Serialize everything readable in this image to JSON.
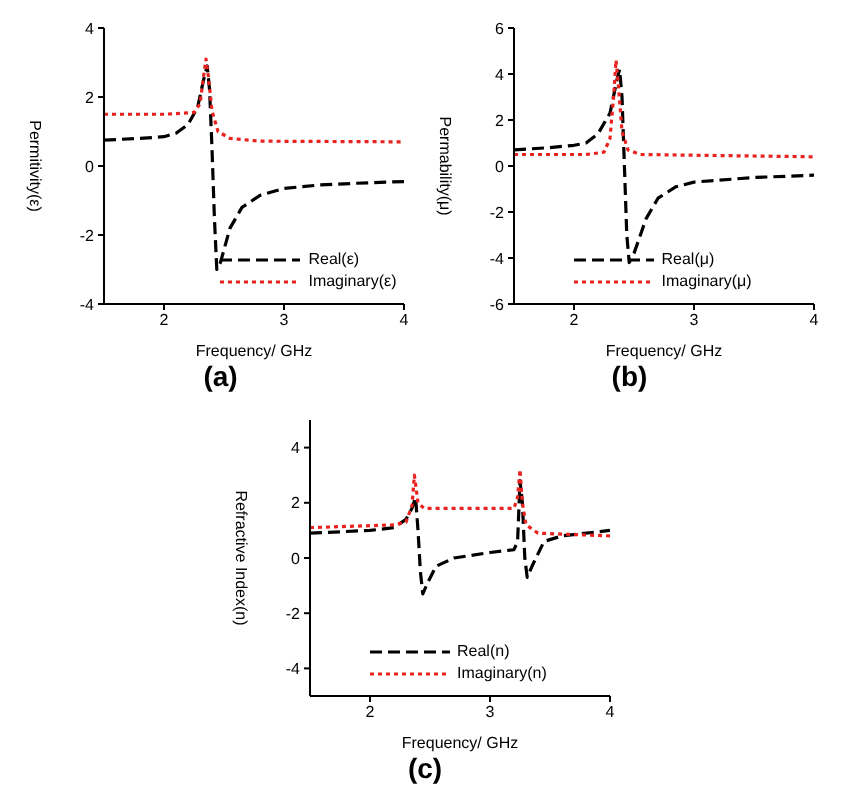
{
  "chart_data": [
    {
      "type": "line",
      "title": "(a)",
      "xlabel": "Frequency/ GHz",
      "ylabel": "Permitivity(ε)",
      "xlim": [
        1.5,
        4
      ],
      "xticks": [
        2,
        3,
        4
      ],
      "ylim": [
        -4,
        4
      ],
      "yticks": [
        -4,
        -2,
        0,
        2,
        4
      ],
      "legend": "bottom right",
      "series": [
        {
          "name": "Real(ε)",
          "color": "#000000",
          "line_style": "dashed",
          "x": [
            1.5,
            1.8,
            2.0,
            2.1,
            2.2,
            2.28,
            2.33,
            2.36,
            2.38,
            2.4,
            2.42,
            2.44,
            2.47,
            2.55,
            2.65,
            2.8,
            3.0,
            3.3,
            3.6,
            4.0
          ],
          "values": [
            0.75,
            0.8,
            0.85,
            0.95,
            1.2,
            1.7,
            2.5,
            2.9,
            2.2,
            0.5,
            -1.5,
            -3.0,
            -2.8,
            -1.8,
            -1.2,
            -0.85,
            -0.65,
            -0.55,
            -0.5,
            -0.45
          ]
        },
        {
          "name": "Imaginary(ε)",
          "color": "#e8221e",
          "line_style": "dotted",
          "x": [
            1.5,
            2.0,
            2.25,
            2.3,
            2.33,
            2.35,
            2.37,
            2.4,
            2.45,
            2.55,
            2.8,
            4.0
          ],
          "values": [
            1.5,
            1.5,
            1.55,
            1.8,
            2.6,
            3.1,
            2.6,
            1.6,
            1.0,
            0.8,
            0.72,
            0.7
          ]
        }
      ]
    },
    {
      "type": "line",
      "title": "(b)",
      "xlabel": "Frequency/ GHz",
      "ylabel": "Permability(μ)",
      "xlim": [
        1.5,
        4
      ],
      "xticks": [
        2,
        3,
        4
      ],
      "ylim": [
        -6,
        6
      ],
      "yticks": [
        -6,
        -4,
        -2,
        0,
        2,
        4,
        6
      ],
      "legend": "bottom",
      "series": [
        {
          "name": "Real(μ)",
          "color": "#000000",
          "line_style": "dashed",
          "x": [
            1.5,
            1.8,
            2.0,
            2.1,
            2.2,
            2.3,
            2.36,
            2.38,
            2.4,
            2.42,
            2.44,
            2.46,
            2.5,
            2.6,
            2.7,
            2.85,
            3.0,
            3.5,
            4.0
          ],
          "values": [
            0.7,
            0.8,
            0.9,
            1.0,
            1.4,
            2.3,
            3.8,
            4.2,
            3.0,
            0,
            -3,
            -4.2,
            -3.8,
            -2.3,
            -1.4,
            -0.9,
            -0.7,
            -0.5,
            -0.4
          ]
        },
        {
          "name": "Imaginary(μ)",
          "color": "#e8221e",
          "line_style": "dotted",
          "x": [
            1.5,
            2.1,
            2.25,
            2.3,
            2.33,
            2.35,
            2.37,
            2.4,
            2.45,
            2.55,
            4.0
          ],
          "values": [
            0.5,
            0.5,
            0.6,
            1.2,
            3.0,
            4.6,
            3.5,
            1.5,
            0.7,
            0.5,
            0.4
          ]
        }
      ]
    },
    {
      "type": "line",
      "title": "(c)",
      "xlabel": "Frequency/ GHz",
      "ylabel": "Refractive Index(n)",
      "xlim": [
        1.5,
        4
      ],
      "xticks": [
        2,
        3,
        4
      ],
      "ylim": [
        -5,
        5
      ],
      "yticks": [
        -4,
        -2,
        0,
        2,
        4
      ],
      "legend": "bottom",
      "series": [
        {
          "name": "Real(n)",
          "color": "#000000",
          "line_style": "dashed",
          "x": [
            1.5,
            2.0,
            2.2,
            2.3,
            2.35,
            2.38,
            2.4,
            2.42,
            2.44,
            2.48,
            2.55,
            2.7,
            3.0,
            3.2,
            3.23,
            3.25,
            3.27,
            3.29,
            3.31,
            3.35,
            3.45,
            3.6,
            4.0
          ],
          "values": [
            0.9,
            1.0,
            1.1,
            1.4,
            1.8,
            2.2,
            1.0,
            -0.5,
            -1.3,
            -0.9,
            -0.3,
            0.0,
            0.2,
            0.3,
            0.6,
            2.8,
            2.0,
            0,
            -0.7,
            -0.3,
            0.6,
            0.8,
            1.0
          ]
        },
        {
          "name": "Imaginary(n)",
          "color": "#e8221e",
          "line_style": "dotted",
          "x": [
            1.5,
            2.2,
            2.3,
            2.35,
            2.37,
            2.4,
            2.45,
            3.0,
            3.2,
            3.23,
            3.25,
            3.27,
            3.3,
            3.4,
            4.0
          ],
          "values": [
            1.1,
            1.2,
            1.3,
            1.9,
            3.0,
            2.0,
            1.8,
            1.8,
            1.8,
            2.2,
            3.2,
            2.0,
            1.2,
            0.9,
            0.8
          ]
        }
      ]
    }
  ]
}
